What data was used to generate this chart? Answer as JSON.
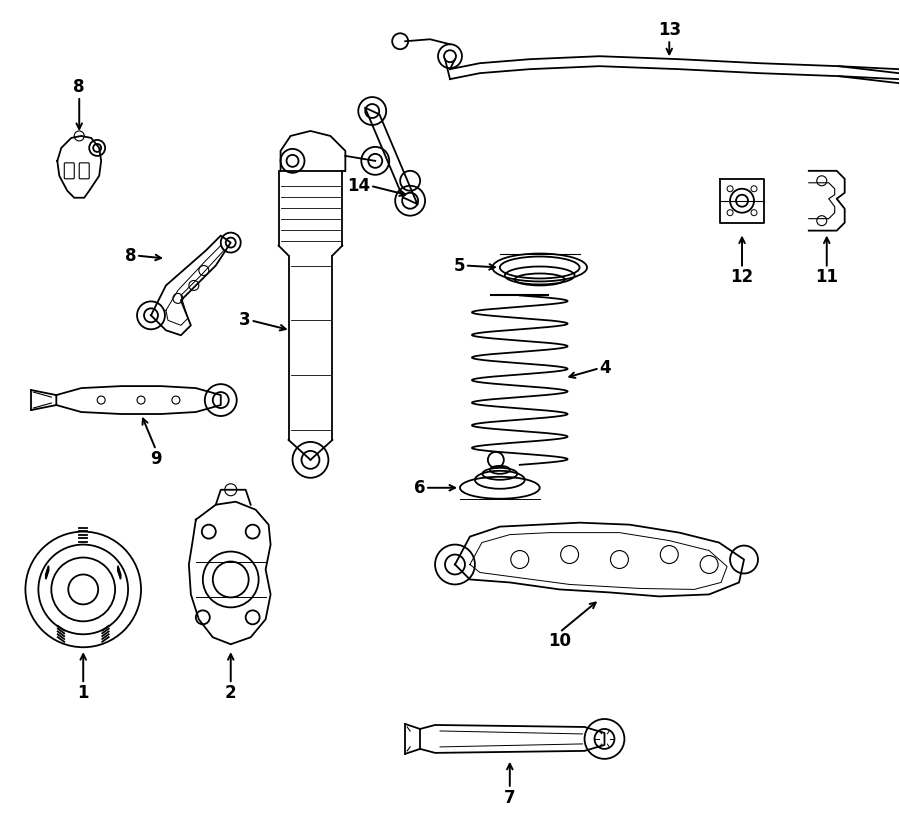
{
  "bg_color": "#ffffff",
  "line_color": "#000000",
  "fig_width": 9.0,
  "fig_height": 8.36,
  "font_size": 12
}
